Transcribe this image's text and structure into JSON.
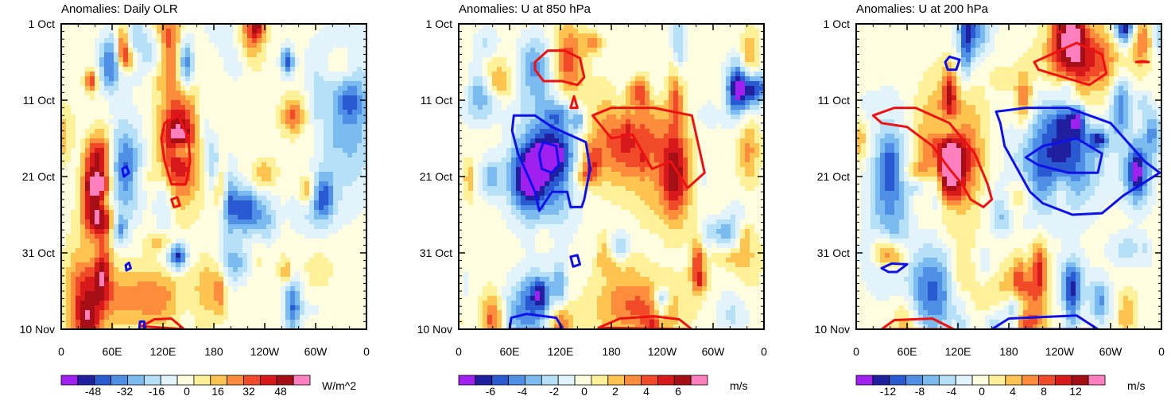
{
  "chart_data": [
    {
      "type": "heatmap",
      "title": "Anomalies: Daily OLR",
      "xlabel": "",
      "ylabel": "",
      "xlim": [
        0,
        360
      ],
      "ylim_dates": [
        "1 Oct",
        "10 Nov"
      ],
      "xticks": [
        "0",
        "60E",
        "120E",
        "180",
        "120W",
        "60W",
        "0"
      ],
      "yticks": [
        "1 Oct",
        "11 Oct",
        "21 Oct",
        "31 Oct",
        "10 Nov"
      ],
      "colorbar": {
        "labels": [
          "-48",
          "-32",
          "-16",
          "0",
          "16",
          "32",
          "48"
        ],
        "units": "W/m^2",
        "min": -56,
        "max": 56
      },
      "seed": 11,
      "amp": 40,
      "features": [
        {
          "lon": 140,
          "day": 16,
          "w": 22,
          "h": 7,
          "a": 48
        },
        {
          "lon": 125,
          "day": 3,
          "w": 18,
          "h": 5,
          "a": 35
        },
        {
          "lon": 100,
          "day": 36,
          "w": 60,
          "h": 4,
          "a": 25
        },
        {
          "lon": 30,
          "day": 35,
          "w": 25,
          "h": 6,
          "a": 30
        },
        {
          "lon": 75,
          "day": 19,
          "w": 20,
          "h": 6,
          "a": -35
        },
        {
          "lon": 340,
          "day": 12,
          "w": 30,
          "h": 10,
          "a": -25
        }
      ],
      "contours": [
        {
          "color": "red",
          "points": [
            [
              122,
              13
            ],
            [
              138,
              12
            ],
            [
              150,
              15
            ],
            [
              152,
              18
            ],
            [
              147,
              21
            ],
            [
              130,
              21
            ],
            [
              122,
              18
            ],
            [
              118,
              15
            ]
          ]
        },
        {
          "color": "red",
          "points": [
            [
              130,
              23
            ],
            [
              137,
              22.7
            ],
            [
              140,
              23.8
            ],
            [
              133,
              24
            ]
          ]
        },
        {
          "color": "red",
          "points": [
            [
              95,
              39.6
            ],
            [
              110,
              38.7
            ],
            [
              130,
              38.6
            ],
            [
              145,
              40
            ]
          ]
        },
        {
          "color": "blue",
          "points": [
            [
              72,
              19
            ],
            [
              77,
              18.7
            ],
            [
              80,
              19.5
            ],
            [
              74,
              20
            ]
          ]
        },
        {
          "color": "blue",
          "points": [
            [
              76,
              31.6
            ],
            [
              80,
              31.3
            ],
            [
              82,
              32
            ],
            [
              77,
              32.3
            ]
          ]
        },
        {
          "color": "blue",
          "points": [
            [
              92,
              40
            ],
            [
              93,
              39
            ],
            [
              98,
              39
            ],
            [
              98,
              40
            ]
          ]
        }
      ]
    },
    {
      "type": "heatmap",
      "title": "Anomalies: U at 850 hPa",
      "xlabel": "",
      "ylabel": "",
      "xlim": [
        0,
        360
      ],
      "ylim_dates": [
        "1 Oct",
        "10 Nov"
      ],
      "xticks": [
        "0",
        "60E",
        "120E",
        "180",
        "120W",
        "60W",
        "0"
      ],
      "yticks": [
        "1 Oct",
        "11 Oct",
        "21 Oct",
        "31 Oct",
        "10 Nov"
      ],
      "colorbar": {
        "labels": [
          "-6",
          "-4",
          "-2",
          "0",
          "2",
          "4",
          "6"
        ],
        "units": "m/s",
        "min": -7,
        "max": 7
      },
      "seed": 23,
      "amp": 4.5,
      "features": [
        {
          "lon": 105,
          "day": 18,
          "w": 35,
          "h": 8,
          "a": -5
        },
        {
          "lon": 200,
          "day": 15,
          "w": 45,
          "h": 6,
          "a": 4.5
        },
        {
          "lon": 255,
          "day": 20,
          "w": 18,
          "h": 6,
          "a": 5.5
        },
        {
          "lon": 130,
          "day": 5,
          "w": 18,
          "h": 5,
          "a": 4
        },
        {
          "lon": 210,
          "day": 37,
          "w": 50,
          "h": 4,
          "a": 3.5
        },
        {
          "lon": 80,
          "day": 38,
          "w": 35,
          "h": 4,
          "a": -3.5
        }
      ],
      "contours": [
        {
          "color": "red",
          "points": [
            [
              90,
              5
            ],
            [
              105,
              3.5
            ],
            [
              125,
              3.5
            ],
            [
              143,
              4.5
            ],
            [
              148,
              7
            ],
            [
              140,
              8
            ],
            [
              122,
              7.5
            ],
            [
              100,
              7.5
            ],
            [
              90,
              6
            ]
          ]
        },
        {
          "color": "red",
          "points": [
            [
              132,
              11
            ],
            [
              136,
              9.5
            ],
            [
              140,
              11
            ]
          ]
        },
        {
          "color": "red",
          "points": [
            [
              158,
              12
            ],
            [
              180,
              11
            ],
            [
              230,
              11
            ],
            [
              275,
              12
            ],
            [
              285,
              17
            ],
            [
              290,
              19.5
            ],
            [
              270,
              21.5
            ],
            [
              250,
              18
            ],
            [
              228,
              19
            ],
            [
              205,
              14.5
            ],
            [
              180,
              15
            ]
          ]
        },
        {
          "color": "red",
          "points": [
            [
              165,
              39.8
            ],
            [
              190,
              38.6
            ],
            [
              230,
              38.3
            ],
            [
              260,
              38.7
            ],
            [
              275,
              40
            ]
          ]
        },
        {
          "color": "blue",
          "points": [
            [
              65,
              12
            ],
            [
              90,
              12
            ],
            [
              110,
              13.5
            ],
            [
              150,
              15.5
            ],
            [
              155,
              19
            ],
            [
              148,
              23
            ],
            [
              145,
              24
            ],
            [
              132,
              24
            ],
            [
              128,
              22
            ],
            [
              110,
              22
            ],
            [
              95,
              24.5
            ],
            [
              90,
              22
            ],
            [
              78,
              19
            ],
            [
              70,
              17
            ],
            [
              63,
              14
            ]
          ]
        },
        {
          "color": "blue",
          "points": [
            [
              95,
              17
            ],
            [
              100,
              15.5
            ],
            [
              115,
              16
            ],
            [
              118,
              18.5
            ],
            [
              110,
              19.5
            ],
            [
              98,
              19
            ]
          ]
        },
        {
          "color": "blue",
          "points": [
            [
              132,
              30.5
            ],
            [
              140,
              30.3
            ],
            [
              143,
              31.5
            ],
            [
              135,
              31.8
            ]
          ]
        },
        {
          "color": "blue",
          "points": [
            [
              60,
              40
            ],
            [
              62,
              38.5
            ],
            [
              80,
              38
            ],
            [
              115,
              38.5
            ],
            [
              123,
              40
            ]
          ]
        }
      ]
    },
    {
      "type": "heatmap",
      "title": "Anomalies: U at 200 hPa",
      "xlabel": "",
      "ylabel": "",
      "xlim": [
        0,
        360
      ],
      "ylim_dates": [
        "1 Oct",
        "10 Nov"
      ],
      "xticks": [
        "0",
        "60E",
        "120E",
        "180",
        "120W",
        "60W",
        "0"
      ],
      "yticks": [
        "1 Oct",
        "11 Oct",
        "21 Oct",
        "31 Oct",
        "10 Nov"
      ],
      "colorbar": {
        "labels": [
          "-12",
          "-8",
          "-4",
          "0",
          "4",
          "8",
          "12"
        ],
        "units": "m/s",
        "min": -14,
        "max": 14
      },
      "seed": 37,
      "amp": 9,
      "features": [
        {
          "lon": 110,
          "day": 17,
          "w": 35,
          "h": 8,
          "a": 11
        },
        {
          "lon": 240,
          "day": 17,
          "w": 45,
          "h": 7,
          "a": -11
        },
        {
          "lon": 90,
          "day": 35,
          "w": 30,
          "h": 6,
          "a": -9
        },
        {
          "lon": 40,
          "day": 22,
          "w": 25,
          "h": 10,
          "a": -7
        },
        {
          "lon": 270,
          "day": 5,
          "w": 45,
          "h": 5,
          "a": 9
        },
        {
          "lon": 185,
          "day": 37,
          "w": 35,
          "h": 5,
          "a": 6
        }
      ],
      "contours": [
        {
          "color": "red",
          "points": [
            [
              20,
              12
            ],
            [
              45,
              11
            ],
            [
              70,
              11
            ],
            [
              110,
              13
            ],
            [
              140,
              17
            ],
            [
              155,
              21
            ],
            [
              160,
              23
            ],
            [
              150,
              24
            ],
            [
              135,
              23
            ],
            [
              125,
              21
            ],
            [
              110,
              19
            ],
            [
              90,
              16
            ],
            [
              60,
              13.5
            ],
            [
              30,
              13
            ]
          ]
        },
        {
          "color": "red",
          "points": [
            [
              210,
              5
            ],
            [
              230,
              4
            ],
            [
              260,
              2.5
            ],
            [
              290,
              4
            ],
            [
              295,
              6.5
            ],
            [
              275,
              8
            ],
            [
              245,
              7
            ],
            [
              215,
              6
            ]
          ]
        },
        {
          "color": "red",
          "points": [
            [
              330,
              5
            ],
            [
              337,
              4.9
            ],
            [
              345,
              5
            ]
          ]
        },
        {
          "color": "red",
          "points": [
            [
              30,
              40
            ],
            [
              45,
              38.8
            ],
            [
              90,
              38.6
            ],
            [
              115,
              40
            ]
          ]
        },
        {
          "color": "blue",
          "points": [
            [
              165,
              11.5
            ],
            [
              200,
              11
            ],
            [
              250,
              11
            ],
            [
              300,
              13
            ],
            [
              340,
              18
            ],
            [
              358,
              19.5
            ],
            [
              315,
              22.5
            ],
            [
              290,
              24.8
            ],
            [
              255,
              25
            ],
            [
              220,
              23.5
            ],
            [
              205,
              22
            ],
            [
              195,
              20
            ],
            [
              175,
              16
            ],
            [
              170,
              13
            ]
          ]
        },
        {
          "color": "blue",
          "points": [
            [
              200,
              17.5
            ],
            [
              220,
              16
            ],
            [
              260,
              15
            ],
            [
              290,
              17
            ],
            [
              285,
              19.5
            ],
            [
              250,
              19.5
            ],
            [
              215,
              18.5
            ]
          ]
        },
        {
          "color": "blue",
          "points": [
            [
              105,
              5
            ],
            [
              110,
              4.3
            ],
            [
              122,
              4.7
            ],
            [
              118,
              6
            ],
            [
              108,
              6
            ]
          ]
        },
        {
          "color": "blue",
          "points": [
            [
              30,
              32
            ],
            [
              42,
              31.4
            ],
            [
              60,
              31.5
            ],
            [
              48,
              32.5
            ],
            [
              38,
              32.5
            ]
          ]
        },
        {
          "color": "blue",
          "points": [
            [
              160,
              40
            ],
            [
              180,
              38.6
            ],
            [
              260,
              38.2
            ],
            [
              285,
              40
            ]
          ]
        }
      ]
    }
  ]
}
